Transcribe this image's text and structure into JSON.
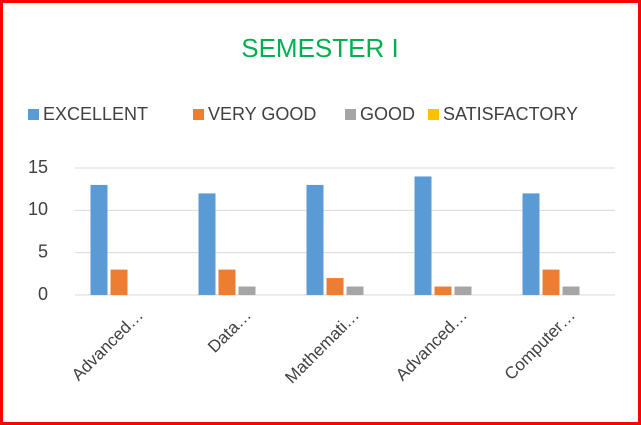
{
  "chart_data": {
    "type": "bar",
    "title": "SEMESTER I",
    "categories": [
      "Advanced…",
      "Data…",
      "Mathemati…",
      "Advanced…",
      "Computer…"
    ],
    "series": [
      {
        "name": "EXCELLENT",
        "color": "#5b9bd5",
        "values": [
          13,
          12,
          13,
          14,
          12
        ]
      },
      {
        "name": "VERY GOOD",
        "color": "#ed7d31",
        "values": [
          3,
          3,
          2,
          1,
          3
        ]
      },
      {
        "name": "GOOD",
        "color": "#a5a5a5",
        "values": [
          0,
          1,
          1,
          1,
          1
        ]
      },
      {
        "name": "SATISFACTORY",
        "color": "#ffc000",
        "values": [
          0,
          0,
          0,
          0,
          0
        ]
      }
    ],
    "ylim": [
      0,
      15
    ],
    "yticks": [
      0,
      5,
      10,
      15
    ],
    "grid": true,
    "legend": "top"
  }
}
